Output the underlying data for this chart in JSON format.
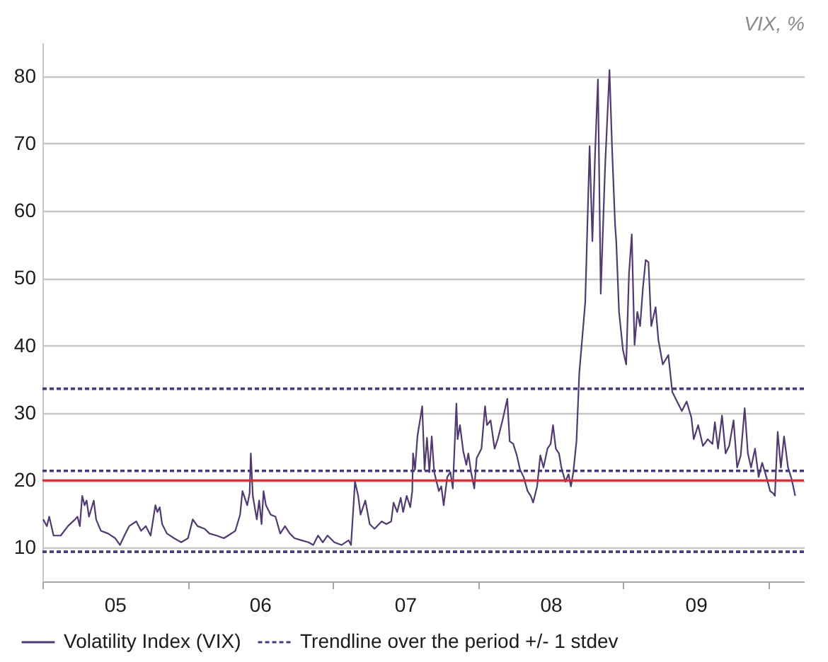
{
  "chart_data": {
    "type": "line",
    "ylabel": "VIX, %",
    "x": [
      "2005-01-03",
      "2005-01-12",
      "2005-01-18",
      "2005-01-29",
      "2005-02-16",
      "2005-03-06",
      "2005-03-24",
      "2005-03-30",
      "2005-04-05",
      "2005-04-11",
      "2005-04-17",
      "2005-04-22",
      "2005-04-28",
      "2005-05-10",
      "2005-05-16",
      "2005-05-28",
      "2005-06-15",
      "2005-07-03",
      "2005-07-15",
      "2005-07-26",
      "2005-08-07",
      "2005-08-25",
      "2005-09-06",
      "2005-09-18",
      "2005-09-30",
      "2005-10-12",
      "2005-10-17",
      "2005-10-23",
      "2005-10-29",
      "2005-11-10",
      "2005-11-28",
      "2005-12-16",
      "2006-01-02",
      "2006-01-14",
      "2006-01-26",
      "2006-02-13",
      "2006-02-25",
      "2006-03-15",
      "2006-04-02",
      "2006-04-13",
      "2006-05-01",
      "2006-05-13",
      "2006-05-19",
      "2006-05-31",
      "2006-06-06",
      "2006-06-09",
      "2006-06-14",
      "2006-06-24",
      "2006-06-30",
      "2006-07-06",
      "2006-07-11",
      "2006-07-17",
      "2006-07-29",
      "2006-08-10",
      "2006-08-22",
      "2006-09-03",
      "2006-09-15",
      "2006-09-27",
      "2006-10-14",
      "2006-11-01",
      "2006-11-13",
      "2006-11-25",
      "2006-12-07",
      "2006-12-19",
      "2007-01-05",
      "2007-01-23",
      "2007-02-10",
      "2007-02-16",
      "2007-02-26",
      "2007-03-06",
      "2007-03-12",
      "2007-03-24",
      "2007-04-04",
      "2007-04-16",
      "2007-05-04",
      "2007-05-16",
      "2007-05-28",
      "2007-06-03",
      "2007-06-12",
      "2007-06-21",
      "2007-06-27",
      "2007-07-06",
      "2007-07-15",
      "2007-07-20",
      "2007-07-22",
      "2007-07-27",
      "2007-08-02",
      "2007-08-14",
      "2007-08-20",
      "2007-08-26",
      "2007-09-01",
      "2007-09-07",
      "2007-09-13",
      "2007-09-19",
      "2007-09-25",
      "2007-10-01",
      "2007-10-07",
      "2007-10-16",
      "2007-10-24",
      "2007-10-30",
      "2007-11-08",
      "2007-11-11",
      "2007-11-17",
      "2007-11-25",
      "2007-12-03",
      "2007-12-08",
      "2007-12-15",
      "2007-12-23",
      "2007-12-29",
      "2008-01-10",
      "2008-01-19",
      "2008-01-24",
      "2008-02-02",
      "2008-02-12",
      "2008-02-20",
      "2008-03-03",
      "2008-03-15",
      "2008-03-21",
      "2008-03-30",
      "2008-04-08",
      "2008-04-16",
      "2008-04-25",
      "2008-05-05",
      "2008-05-13",
      "2008-05-19",
      "2008-05-29",
      "2008-06-06",
      "2008-06-14",
      "2008-06-24",
      "2008-07-02",
      "2008-07-08",
      "2008-07-15",
      "2008-07-23",
      "2008-07-29",
      "2008-08-08",
      "2008-08-16",
      "2008-08-22",
      "2008-08-28",
      "2008-09-05",
      "2008-09-12",
      "2008-09-27",
      "2008-10-08",
      "2008-10-15",
      "2008-10-22",
      "2008-10-29",
      "2008-11-05",
      "2008-11-16",
      "2008-11-27",
      "2008-12-04",
      "2008-12-11",
      "2008-12-14",
      "2008-12-21",
      "2008-12-31",
      "2009-01-08",
      "2009-01-15",
      "2009-01-22",
      "2009-01-29",
      "2009-02-05",
      "2009-02-12",
      "2009-02-19",
      "2009-02-26",
      "2009-03-05",
      "2009-03-12",
      "2009-03-23",
      "2009-03-30",
      "2009-04-10",
      "2009-04-24",
      "2009-05-04",
      "2009-05-16",
      "2009-05-28",
      "2009-06-09",
      "2009-06-21",
      "2009-06-27",
      "2009-07-08",
      "2009-07-20",
      "2009-08-01",
      "2009-08-13",
      "2009-08-19",
      "2009-08-27",
      "2009-09-06",
      "2009-09-15",
      "2009-09-24",
      "2009-10-05",
      "2009-10-14",
      "2009-10-23",
      "2009-11-02",
      "2009-11-10",
      "2009-11-18",
      "2009-11-28",
      "2009-12-07",
      "2009-12-16",
      "2009-12-28",
      "2010-01-05",
      "2010-01-12",
      "2010-01-17",
      "2010-01-24",
      "2010-02-01",
      "2010-02-09",
      "2010-02-19",
      "2010-02-28",
      "2010-03-09"
    ],
    "series": [
      {
        "name": "Volatility Index (VIX)",
        "color": "#503a70",
        "values": [
          14.2,
          13.2,
          14.6,
          11.8,
          11.8,
          13.2,
          14.2,
          14.6,
          13.2,
          17.7,
          16.3,
          17.0,
          14.6,
          17.0,
          14.2,
          12.5,
          12.1,
          11.4,
          10.4,
          11.8,
          13.2,
          13.9,
          12.5,
          13.2,
          11.8,
          16.3,
          15.3,
          16.0,
          13.5,
          12.1,
          11.4,
          10.8,
          11.4,
          14.2,
          13.2,
          12.8,
          12.1,
          11.8,
          11.4,
          11.8,
          12.5,
          14.9,
          18.4,
          16.3,
          18.1,
          24.0,
          17.7,
          14.2,
          17.0,
          13.5,
          18.4,
          16.3,
          14.9,
          14.6,
          12.1,
          13.2,
          12.1,
          11.4,
          11.1,
          10.8,
          10.4,
          11.8,
          10.8,
          11.8,
          10.8,
          10.4,
          11.1,
          10.4,
          19.8,
          17.7,
          14.9,
          17.0,
          13.5,
          12.8,
          13.9,
          13.5,
          13.9,
          16.7,
          15.3,
          17.4,
          15.3,
          17.7,
          16.0,
          18.4,
          24.0,
          21.6,
          26.5,
          31.0,
          21.6,
          26.3,
          21.2,
          26.5,
          21.3,
          19.8,
          18.4,
          19.1,
          16.3,
          20.5,
          21.2,
          18.8,
          31.4,
          26.1,
          28.2,
          24.4,
          22.3,
          24.0,
          21.2,
          18.8,
          23.3,
          24.7,
          31.0,
          28.2,
          28.9,
          24.7,
          26.1,
          28.9,
          32.1,
          25.8,
          25.4,
          23.7,
          21.6,
          20.5,
          18.4,
          17.7,
          16.7,
          19.1,
          23.7,
          21.9,
          24.7,
          25.4,
          28.2,
          24.7,
          24.0,
          21.9,
          19.8,
          20.9,
          19.1,
          21.2,
          25.8,
          35.9,
          46.4,
          69.6,
          55.5,
          68.9,
          79.5,
          47.7,
          66.6,
          80.9,
          68.5,
          58.0,
          55.5,
          45.0,
          39.3,
          37.2,
          50.6,
          56.5,
          40.1,
          45.0,
          42.9,
          48.5,
          52.7,
          52.4,
          42.9,
          45.7,
          40.8,
          37.2,
          38.6,
          33.1,
          31.7,
          30.3,
          31.7,
          29.3,
          26.1,
          28.2,
          25.1,
          26.1,
          25.4,
          28.6,
          24.7,
          29.6,
          24.0,
          25.1,
          28.9,
          21.9,
          23.7,
          30.7,
          24.0,
          21.9,
          24.7,
          20.5,
          22.6,
          20.2,
          18.4,
          18.1,
          17.7,
          27.2,
          21.9,
          26.5,
          21.9,
          20.2,
          17.7
        ]
      },
      {
        "name": "Trendline over the period +/- 1 stdev",
        "type": "line",
        "line_style": "dotted",
        "color": "#4a3a7a",
        "x": [
          "2005-01-01",
          "2010-03-31"
        ],
        "values": [
          21.4,
          21.4
        ]
      },
      {
        "type": "line",
        "line_style": "dotted",
        "color": "#4a3a7a",
        "x": [
          "2005-01-01",
          "2010-03-31"
        ],
        "values": [
          33.6,
          33.6
        ]
      },
      {
        "type": "line",
        "line_style": "dotted",
        "color": "#4a3a7a",
        "x": [
          "2005-01-01",
          "2010-03-31"
        ],
        "values": [
          9.4,
          9.4
        ]
      }
    ],
    "ref_lines": [
      {
        "axis": "y",
        "value": 20,
        "color": "#e3262d"
      }
    ],
    "xlim": [
      "2005-01-01",
      "2010-03-31"
    ],
    "xticks": [
      {
        "value": "2005-01-01",
        "label": null
      },
      {
        "value": "2005-07-02",
        "label": "05"
      },
      {
        "value": "2006-01-01",
        "label": null
      },
      {
        "value": "2006-07-02",
        "label": "06"
      },
      {
        "value": "2007-01-01",
        "label": null
      },
      {
        "value": "2007-07-02",
        "label": "07"
      },
      {
        "value": "2008-01-01",
        "label": null
      },
      {
        "value": "2008-07-02",
        "label": "08"
      },
      {
        "value": "2009-01-01",
        "label": null
      },
      {
        "value": "2009-07-02",
        "label": "09"
      },
      {
        "value": "2010-01-01",
        "label": null
      }
    ],
    "ylim": [
      5,
      85
    ],
    "yticks": [
      10,
      20,
      30,
      40,
      50,
      60,
      70,
      80
    ],
    "grid": "y",
    "legend": "bottom",
    "line_style": "solid"
  }
}
